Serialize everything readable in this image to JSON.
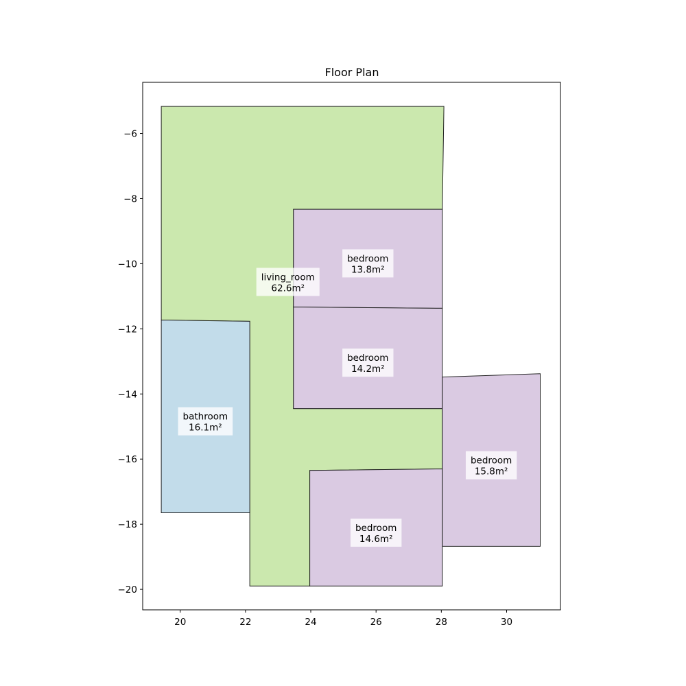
{
  "chart_data": {
    "type": "floor_plan",
    "title": "Floor Plan",
    "xlim": [
      18.85,
      31.65
    ],
    "ylim": [
      -20.63,
      -4.43
    ],
    "xticks": [
      20,
      22,
      24,
      26,
      28,
      30
    ],
    "yticks": [
      -6,
      -8,
      -10,
      -12,
      -14,
      -16,
      -18,
      -20
    ],
    "colors": {
      "living_room": "#cbe8ae",
      "bathroom": "#c2dcea",
      "bedroom": "#dacae2"
    },
    "rooms": [
      {
        "type": "living_room",
        "label": "living_room",
        "area_label": "62.6m²",
        "label_pos": [
          23.3,
          -10.57
        ],
        "polygon": [
          [
            19.42,
            -5.17
          ],
          [
            28.08,
            -5.17
          ],
          [
            28.03,
            -8.33
          ],
          [
            23.47,
            -8.33
          ],
          [
            23.47,
            -14.45
          ],
          [
            28.03,
            -14.45
          ],
          [
            28.03,
            -16.3
          ],
          [
            23.97,
            -16.35
          ],
          [
            23.97,
            -19.9
          ],
          [
            22.13,
            -19.9
          ],
          [
            22.13,
            -11.77
          ],
          [
            19.42,
            -11.73
          ]
        ]
      },
      {
        "type": "bathroom",
        "label": "bathroom",
        "area_label": "16.1m²",
        "label_pos": [
          20.77,
          -14.85
        ],
        "polygon": [
          [
            19.42,
            -11.73
          ],
          [
            22.13,
            -11.77
          ],
          [
            22.13,
            -17.65
          ],
          [
            19.42,
            -17.65
          ]
        ]
      },
      {
        "type": "bedroom",
        "label": "bedroom",
        "area_label": "13.8m²",
        "label_pos": [
          25.75,
          -10.0
        ],
        "polygon": [
          [
            23.47,
            -8.33
          ],
          [
            28.03,
            -8.33
          ],
          [
            28.03,
            -11.37
          ],
          [
            23.47,
            -11.33
          ]
        ]
      },
      {
        "type": "bedroom",
        "label": "bedroom",
        "area_label": "14.2m²",
        "label_pos": [
          25.75,
          -13.05
        ],
        "polygon": [
          [
            23.47,
            -11.33
          ],
          [
            28.03,
            -11.37
          ],
          [
            28.03,
            -14.45
          ],
          [
            23.47,
            -14.45
          ]
        ]
      },
      {
        "type": "bedroom",
        "label": "bedroom",
        "area_label": "15.8m²",
        "label_pos": [
          29.53,
          -16.2
        ],
        "polygon": [
          [
            28.03,
            -13.48
          ],
          [
            31.03,
            -13.38
          ],
          [
            31.03,
            -18.68
          ],
          [
            28.03,
            -18.68
          ]
        ]
      },
      {
        "type": "bedroom",
        "label": "bedroom",
        "area_label": "14.6m²",
        "label_pos": [
          26.0,
          -18.27
        ],
        "polygon": [
          [
            23.97,
            -16.35
          ],
          [
            28.03,
            -16.3
          ],
          [
            28.03,
            -19.9
          ],
          [
            23.97,
            -19.9
          ]
        ]
      }
    ]
  }
}
